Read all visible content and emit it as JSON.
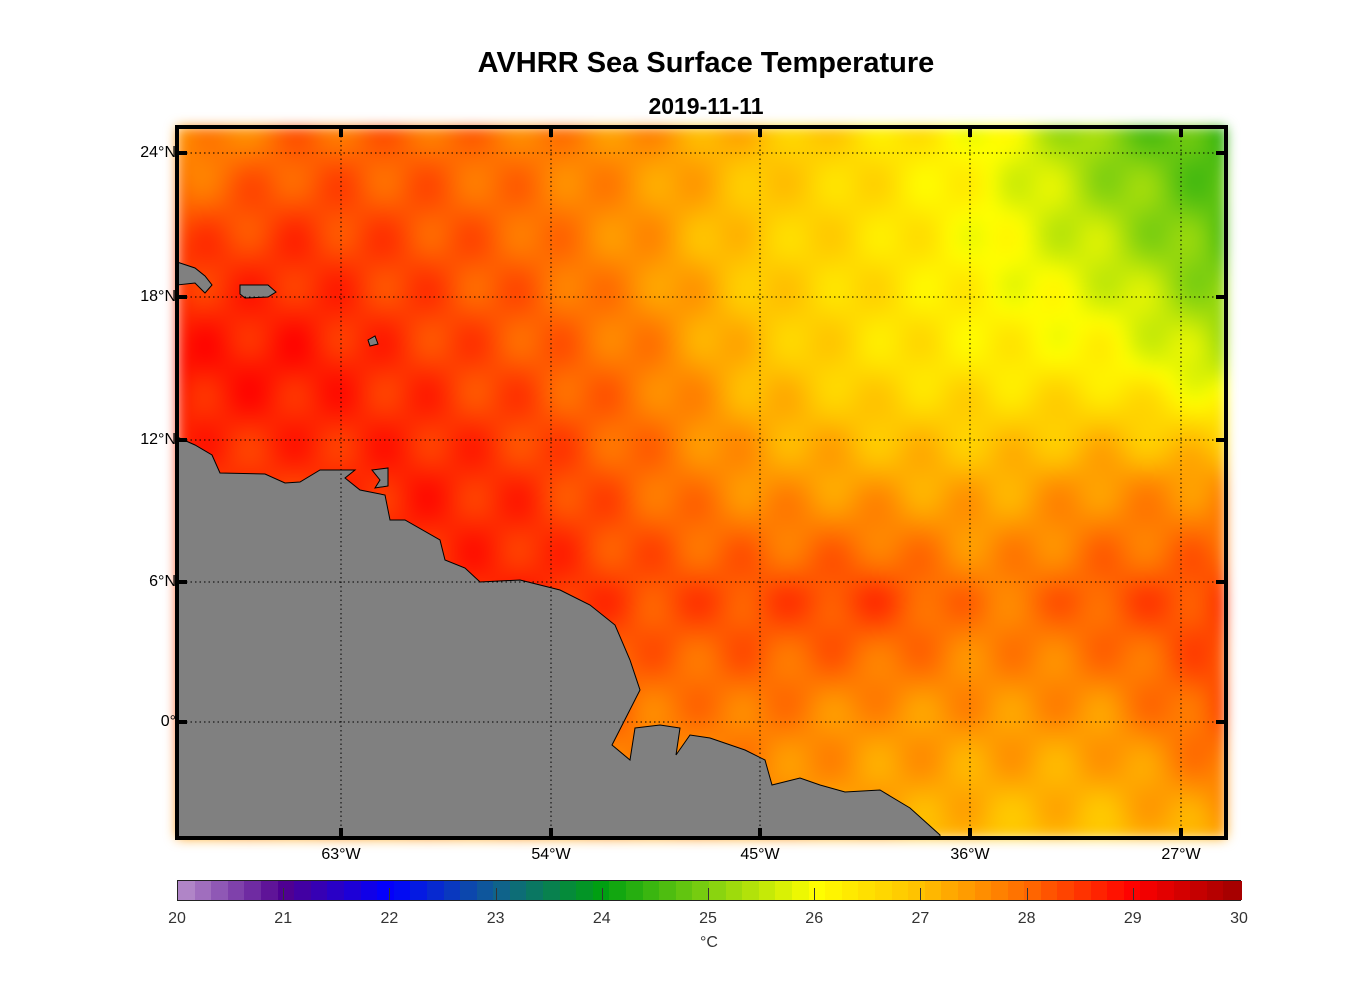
{
  "title": "AVHRR Sea Surface Temperature",
  "subtitle": "2019-11-11",
  "chart_data": {
    "type": "heatmap",
    "title": "AVHRR Sea Surface Temperature",
    "subtitle": "2019-11-11",
    "lon_range": [
      -70,
      -25
    ],
    "lat_range": [
      -5,
      25
    ],
    "grid_lons": [
      -70,
      -65,
      -60,
      -55,
      -50,
      -45,
      -40,
      -35,
      -30,
      -25
    ],
    "grid_lats": [
      25,
      20,
      15,
      10,
      5,
      0,
      -5
    ],
    "sst_celsius": [
      [
        27.5,
        28.0,
        28.0,
        27.8,
        27.5,
        27.0,
        26.5,
        26.0,
        25.0,
        24.5
      ],
      [
        28.4,
        28.5,
        28.3,
        28.0,
        27.5,
        26.8,
        26.5,
        26.0,
        25.5,
        24.8
      ],
      [
        28.8,
        28.8,
        28.5,
        28.2,
        27.8,
        27.0,
        26.5,
        26.3,
        26.2,
        25.5
      ],
      [
        28.5,
        28.5,
        28.7,
        28.5,
        28.0,
        27.5,
        27.3,
        27.2,
        27.5,
        27.5
      ],
      [
        28.4,
        28.5,
        28.6,
        28.7,
        28.3,
        28.3,
        28.4,
        27.8,
        28.2,
        28.4
      ],
      [
        28.3,
        28.3,
        28.3,
        28.6,
        27.8,
        27.8,
        27.5,
        27.5,
        27.5,
        28.2
      ],
      [
        27.5,
        27.5,
        27.5,
        27.5,
        27.5,
        27.5,
        27.3,
        27.0,
        27.0,
        27.3
      ]
    ],
    "y_ticks": [
      "24°N",
      "18°N",
      "12°N",
      "6°N",
      "0°"
    ],
    "x_ticks": [
      "63°W",
      "54°W",
      "45°W",
      "36°W",
      "27°W"
    ],
    "colorbar": {
      "min": 20,
      "max": 30,
      "ticks": [
        "20",
        "21",
        "22",
        "23",
        "24",
        "25",
        "26",
        "27",
        "28",
        "29",
        "30"
      ],
      "label": "°C",
      "stops": [
        [
          20,
          "#b890cc"
        ],
        [
          21,
          "#500090"
        ],
        [
          22,
          "#0000ff"
        ],
        [
          23,
          "#106090"
        ],
        [
          24,
          "#00a010"
        ],
        [
          25,
          "#80d010"
        ],
        [
          26,
          "#ffff00"
        ],
        [
          27,
          "#ffc000"
        ],
        [
          28,
          "#ff6a00"
        ],
        [
          29,
          "#ff0000"
        ],
        [
          30,
          "#a00000"
        ]
      ]
    },
    "land_color": "#808080",
    "grid": "dotted"
  }
}
